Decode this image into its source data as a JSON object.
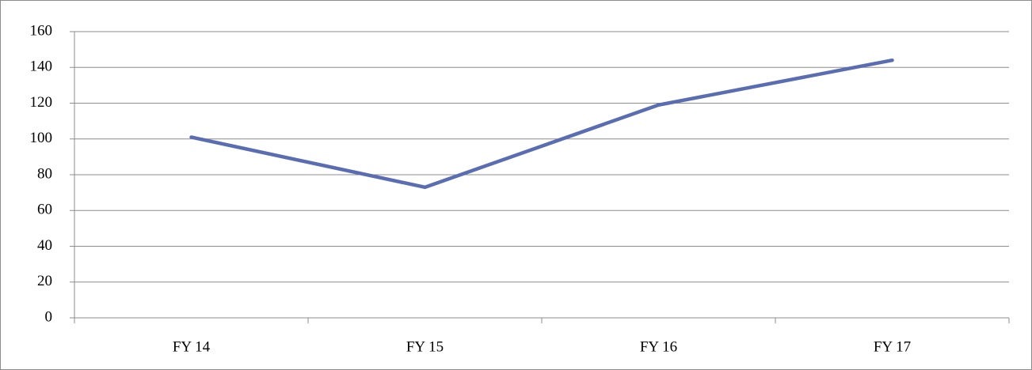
{
  "chart_data": {
    "type": "line",
    "categories": [
      "FY 14",
      "FY 15",
      "FY 16",
      "FY 17"
    ],
    "values": [
      101,
      73,
      119,
      144
    ],
    "color": "#5a6db2",
    "ylim": [
      0,
      160
    ],
    "yticks": [
      0,
      20,
      40,
      60,
      80,
      100,
      120,
      140,
      160
    ],
    "grid": true
  }
}
